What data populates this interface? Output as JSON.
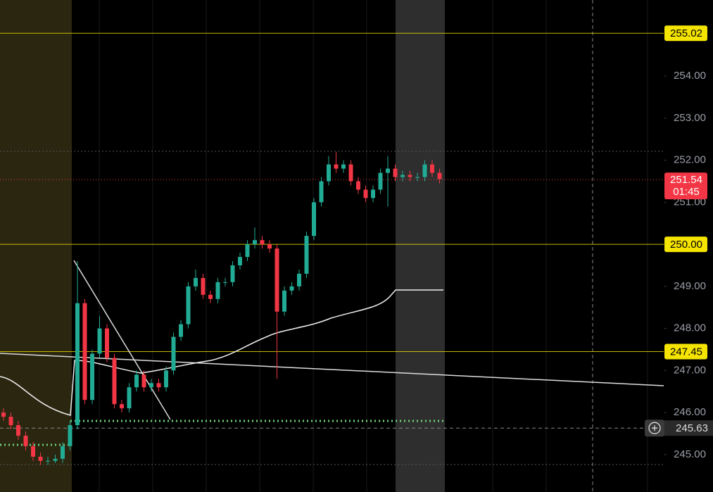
{
  "chart_data": {
    "type": "candlestick",
    "open": [
      246.0,
      245.9,
      245.7,
      245.45,
      245.2,
      244.95,
      244.85,
      244.85,
      244.9,
      245.2,
      245.7,
      248.6,
      246.3,
      247.4,
      248.0,
      247.3,
      246.2,
      246.1,
      246.6,
      246.9,
      246.6,
      246.7,
      246.6,
      247.0,
      247.8,
      248.1,
      249.0,
      249.2,
      248.8,
      248.7,
      249.1,
      249.1,
      249.5,
      249.7,
      250.0,
      250.1,
      250.0,
      249.9,
      248.4,
      248.9,
      249.0,
      249.3,
      250.2,
      251.0,
      251.5,
      251.9,
      251.8,
      251.9,
      251.5,
      251.3,
      251.1,
      251.3,
      251.7,
      251.8,
      251.6,
      251.65,
      251.6,
      251.6,
      251.9,
      251.7
    ],
    "high": [
      246.1,
      246.0,
      245.8,
      245.55,
      245.3,
      245.05,
      244.95,
      245.0,
      245.3,
      245.8,
      249.6,
      248.7,
      247.5,
      248.3,
      248.1,
      247.4,
      246.3,
      246.7,
      247.0,
      247.0,
      246.8,
      246.8,
      247.1,
      247.9,
      248.2,
      249.1,
      249.4,
      249.3,
      248.9,
      249.2,
      249.2,
      249.6,
      249.8,
      250.1,
      250.4,
      250.2,
      250.1,
      250.0,
      249.0,
      249.1,
      249.4,
      250.3,
      251.1,
      251.6,
      252.1,
      252.2,
      252.0,
      252.0,
      251.6,
      251.4,
      251.4,
      251.8,
      252.1,
      251.9,
      251.75,
      251.75,
      251.7,
      252.0,
      252.0,
      251.8
    ],
    "low": [
      245.8,
      245.6,
      245.35,
      245.1,
      244.85,
      244.75,
      244.75,
      244.8,
      244.8,
      245.1,
      245.6,
      246.2,
      246.2,
      247.3,
      247.2,
      246.1,
      246.0,
      246.0,
      246.5,
      246.5,
      246.5,
      246.5,
      246.5,
      246.9,
      247.7,
      248.0,
      248.9,
      248.7,
      248.6,
      248.6,
      249.0,
      249.0,
      249.4,
      249.6,
      249.9,
      249.9,
      249.8,
      246.8,
      248.3,
      248.8,
      248.9,
      249.2,
      250.1,
      250.9,
      251.4,
      251.7,
      251.7,
      251.4,
      251.2,
      251.0,
      251.0,
      251.2,
      250.9,
      251.5,
      251.5,
      251.5,
      251.5,
      251.5,
      251.6,
      251.45
    ],
    "close": [
      245.9,
      245.7,
      245.45,
      245.2,
      244.95,
      244.85,
      244.85,
      244.9,
      245.2,
      245.7,
      248.6,
      246.3,
      247.4,
      248.0,
      247.3,
      246.2,
      246.1,
      246.6,
      246.9,
      246.6,
      246.7,
      246.6,
      247.0,
      247.8,
      248.1,
      249.0,
      249.2,
      248.8,
      248.7,
      249.1,
      249.1,
      249.5,
      249.7,
      250.0,
      250.1,
      250.0,
      249.9,
      248.4,
      248.9,
      249.0,
      249.3,
      250.2,
      251.0,
      251.5,
      251.9,
      251.8,
      251.9,
      251.5,
      251.3,
      251.1,
      251.3,
      251.7,
      251.8,
      251.6,
      251.65,
      251.6,
      251.6,
      251.9,
      251.7,
      251.55
    ],
    "up_color": "#22ab94",
    "down_color": "#f23645",
    "ylim": [
      244.11,
      255.81
    ],
    "yticks": [
      {
        "value": 245,
        "label": "245.00"
      },
      {
        "value": 246,
        "label": "246.00"
      },
      {
        "value": 247,
        "label": "247.00"
      },
      {
        "value": 248,
        "label": "248.00"
      },
      {
        "value": 249,
        "label": "249.00"
      },
      {
        "value": 250,
        "label": "250.00"
      },
      {
        "value": 251,
        "label": "251.00"
      },
      {
        "value": 252,
        "label": "252.00"
      },
      {
        "value": 253,
        "label": "253.00"
      },
      {
        "value": 254,
        "label": "254.00"
      }
    ],
    "levels": [
      255.02,
      {
        "value": 250,
        "label": "250.00"
      },
      247.45
    ],
    "level_color": "#f5e400",
    "last_price": 251.54,
    "countdown": "01:45",
    "crosshair_price": 245.63
  }
}
